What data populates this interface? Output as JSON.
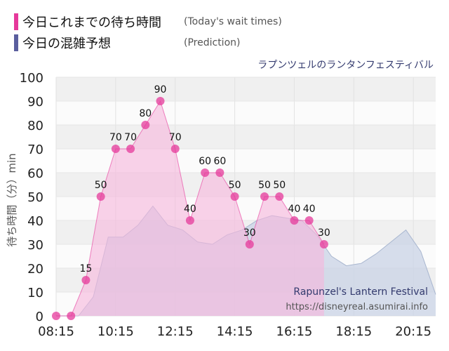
{
  "legend": {
    "today_label": "今日これまでの待ち時間",
    "today_sub": "(Today's wait times)",
    "pred_label": "今日の混雑予想",
    "pred_sub": "(Prediction)"
  },
  "attraction_name_jp": "ラプンツェルのランタンフェスティバル",
  "watermark": {
    "name": "Rapunzel's Lantern Festival",
    "url": "https://disneyreal.asumirai.info"
  },
  "colors": {
    "today": "#e6399b",
    "today_fill": "#f7b6dc",
    "prediction": "#5a5e9e",
    "prediction_fill": "#c9d3e6"
  },
  "chart_data": {
    "type": "area",
    "ylabel": "待ち時間（分）min",
    "ylim": [
      0,
      100
    ],
    "yticks": [
      0,
      10,
      20,
      30,
      40,
      50,
      60,
      70,
      80,
      90,
      100
    ],
    "xlim": [
      "08:15",
      "21:00"
    ],
    "xticks": [
      "08:15",
      "10:15",
      "12:15",
      "14:15",
      "16:15",
      "18:15",
      "20:15"
    ],
    "grid": true,
    "series": [
      {
        "name": "今日これまでの待ち時間",
        "x": [
          "08:15",
          "08:45",
          "09:15",
          "09:45",
          "10:15",
          "10:45",
          "11:15",
          "11:45",
          "12:15",
          "12:45",
          "13:15",
          "13:45",
          "14:15",
          "14:45",
          "15:15",
          "15:45",
          "16:15",
          "16:45",
          "17:15"
        ],
        "values": [
          0,
          0,
          15,
          50,
          70,
          70,
          80,
          90,
          70,
          40,
          60,
          60,
          50,
          30,
          50,
          50,
          40,
          40,
          30
        ],
        "labels": [
          "",
          "",
          "15",
          "50",
          "70",
          "70",
          "80",
          "90",
          "70",
          "40",
          "60",
          "60",
          "50",
          "30",
          "50",
          "50",
          "40",
          "40",
          "30"
        ]
      },
      {
        "name": "今日の混雑予想",
        "x": [
          "08:15",
          "09:00",
          "09:30",
          "10:00",
          "10:30",
          "11:00",
          "11:30",
          "12:00",
          "12:30",
          "13:00",
          "13:30",
          "14:00",
          "14:30",
          "15:00",
          "15:30",
          "16:00",
          "16:30",
          "17:00",
          "17:30",
          "18:00",
          "18:30",
          "19:00",
          "19:30",
          "20:00",
          "20:30",
          "21:00"
        ],
        "values": [
          0,
          0,
          8,
          33,
          33,
          38,
          46,
          38,
          36,
          31,
          30,
          34,
          36,
          40,
          42,
          41,
          40,
          34,
          25,
          21,
          22,
          26,
          31,
          36,
          27,
          9
        ]
      }
    ]
  }
}
